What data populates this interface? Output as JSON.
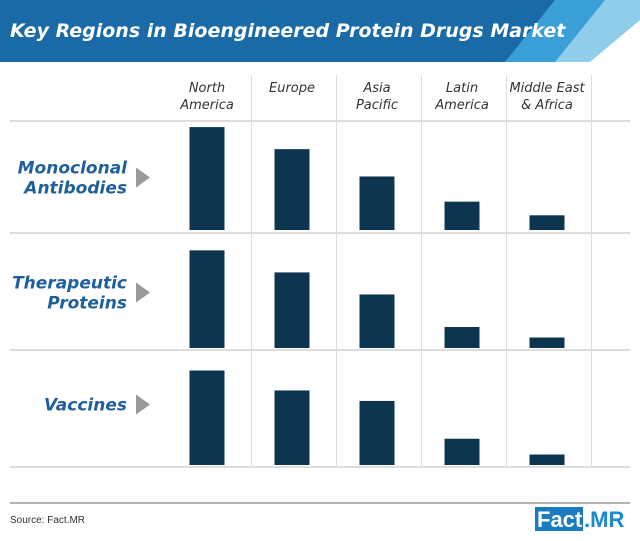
{
  "chart_data": {
    "type": "bar",
    "title": "Key Regions in Bioengineered Protein Drugs Market",
    "categories": [
      [
        "North",
        "America"
      ],
      [
        "Europe"
      ],
      [
        "Asia",
        "Pacific"
      ],
      [
        "Latin",
        "America"
      ],
      [
        "Middle East",
        "& Africa"
      ]
    ],
    "series": [
      {
        "name": [
          "Monoclonal",
          "Antibodies"
        ],
        "values": [
          98,
          77,
          51,
          27,
          14
        ]
      },
      {
        "name": [
          "Therapeutic",
          "Proteins"
        ],
        "values": [
          93,
          72,
          51,
          20,
          10
        ]
      },
      {
        "name": [
          "Vaccines"
        ],
        "values": [
          90,
          71,
          61,
          25,
          10
        ]
      }
    ],
    "ylim": [
      0,
      100
    ],
    "bar_color": "#0d3550",
    "accent": "#1a6aa8"
  },
  "footer": {
    "source": "Source: Fact.MR",
    "logo_left": "Fact",
    "logo_right": ".MR"
  }
}
